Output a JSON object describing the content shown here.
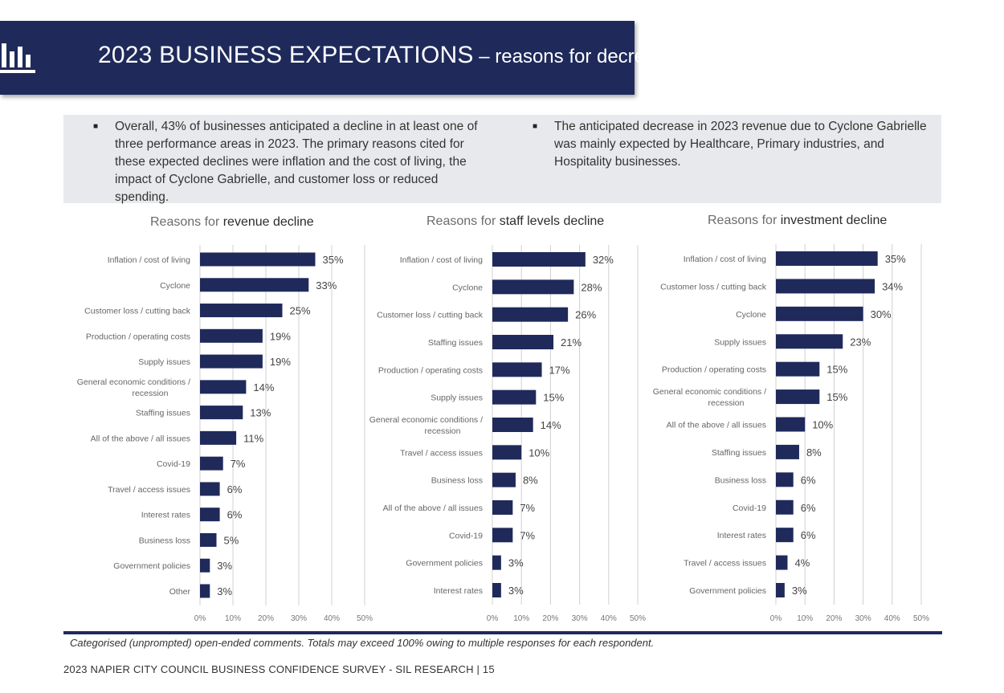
{
  "header": {
    "title_main": "2023 BUSINESS EXPECTATIONS",
    "title_sub": " – reasons for decrease"
  },
  "summary": {
    "bullet_1": "Overall, 43% of businesses anticipated a decline in at least one of three performance areas in 2023. The primary reasons cited for these expected declines were inflation and the cost of living, the impact of Cyclone Gabrielle, and customer loss or reduced spending.",
    "bullet_2": "The anticipated decrease in 2023 revenue due to Cyclone Gabrielle was mainly expected by Healthcare, Primary industries, and Hospitality businesses."
  },
  "colors": {
    "bar": "#1f2a5b",
    "grid": "#d0d0d0",
    "header_bg": "#1f2a5b",
    "summary_bg": "#e8e9ed"
  },
  "chart_data": [
    {
      "type": "bar",
      "orientation": "horizontal",
      "title_prefix": "Reasons for ",
      "title_bold": "revenue decline",
      "categories": [
        "Inflation / cost of living",
        "Cyclone",
        "Customer loss / cutting back",
        "Production / operating costs",
        "Supply issues",
        "General economic conditions / recession",
        "Staffing issues",
        "All of the above / all issues",
        "Covid-19",
        "Travel / access issues",
        "Interest rates",
        "Business loss",
        "Government policies",
        "Other"
      ],
      "values": [
        35,
        33,
        25,
        19,
        19,
        14,
        13,
        11,
        7,
        6,
        6,
        5,
        3,
        3
      ],
      "xlim": [
        0,
        50
      ],
      "ticks": [
        "0%",
        "10%",
        "20%",
        "30%",
        "40%",
        "50%"
      ],
      "unit": "%",
      "grid": true
    },
    {
      "type": "bar",
      "orientation": "horizontal",
      "title_prefix": "Reasons for ",
      "title_bold": "staff levels decline",
      "categories": [
        "Inflation / cost of living",
        "Cyclone",
        "Customer loss / cutting back",
        "Staffing issues",
        "Production / operating costs",
        "Supply issues",
        "General economic conditions / recession",
        "Travel / access issues",
        "Business loss",
        "All of the above / all issues",
        "Covid-19",
        "Government policies",
        "Interest rates"
      ],
      "values": [
        32,
        28,
        26,
        21,
        17,
        15,
        14,
        10,
        8,
        7,
        7,
        3,
        3
      ],
      "xlim": [
        0,
        50
      ],
      "ticks": [
        "0%",
        "10%",
        "20%",
        "30%",
        "40%",
        "50%"
      ],
      "unit": "%",
      "grid": true
    },
    {
      "type": "bar",
      "orientation": "horizontal",
      "title_prefix": "Reasons for ",
      "title_bold": "investment decline",
      "categories": [
        "Inflation / cost of living",
        "Customer loss / cutting back",
        "Cyclone",
        "Supply issues",
        "Production / operating costs",
        "General economic conditions / recession",
        "All of the above / all issues",
        "Staffing issues",
        "Business loss",
        "Covid-19",
        "Interest rates",
        "Travel / access issues",
        "Government policies"
      ],
      "values": [
        35,
        34,
        30,
        23,
        15,
        15,
        10,
        8,
        6,
        6,
        6,
        4,
        3
      ],
      "xlim": [
        0,
        50
      ],
      "ticks": [
        "0%",
        "10%",
        "20%",
        "30%",
        "40%",
        "50%"
      ],
      "unit": "%",
      "grid": true
    }
  ],
  "footnote": "Categorised (unprompted) open-ended comments. Totals may exceed 100% owing to multiple responses for each respondent.",
  "footer": "2023 NAPIER CITY COUNCIL BUSINESS CONFIDENCE SURVEY - SIL RESEARCH | 15"
}
